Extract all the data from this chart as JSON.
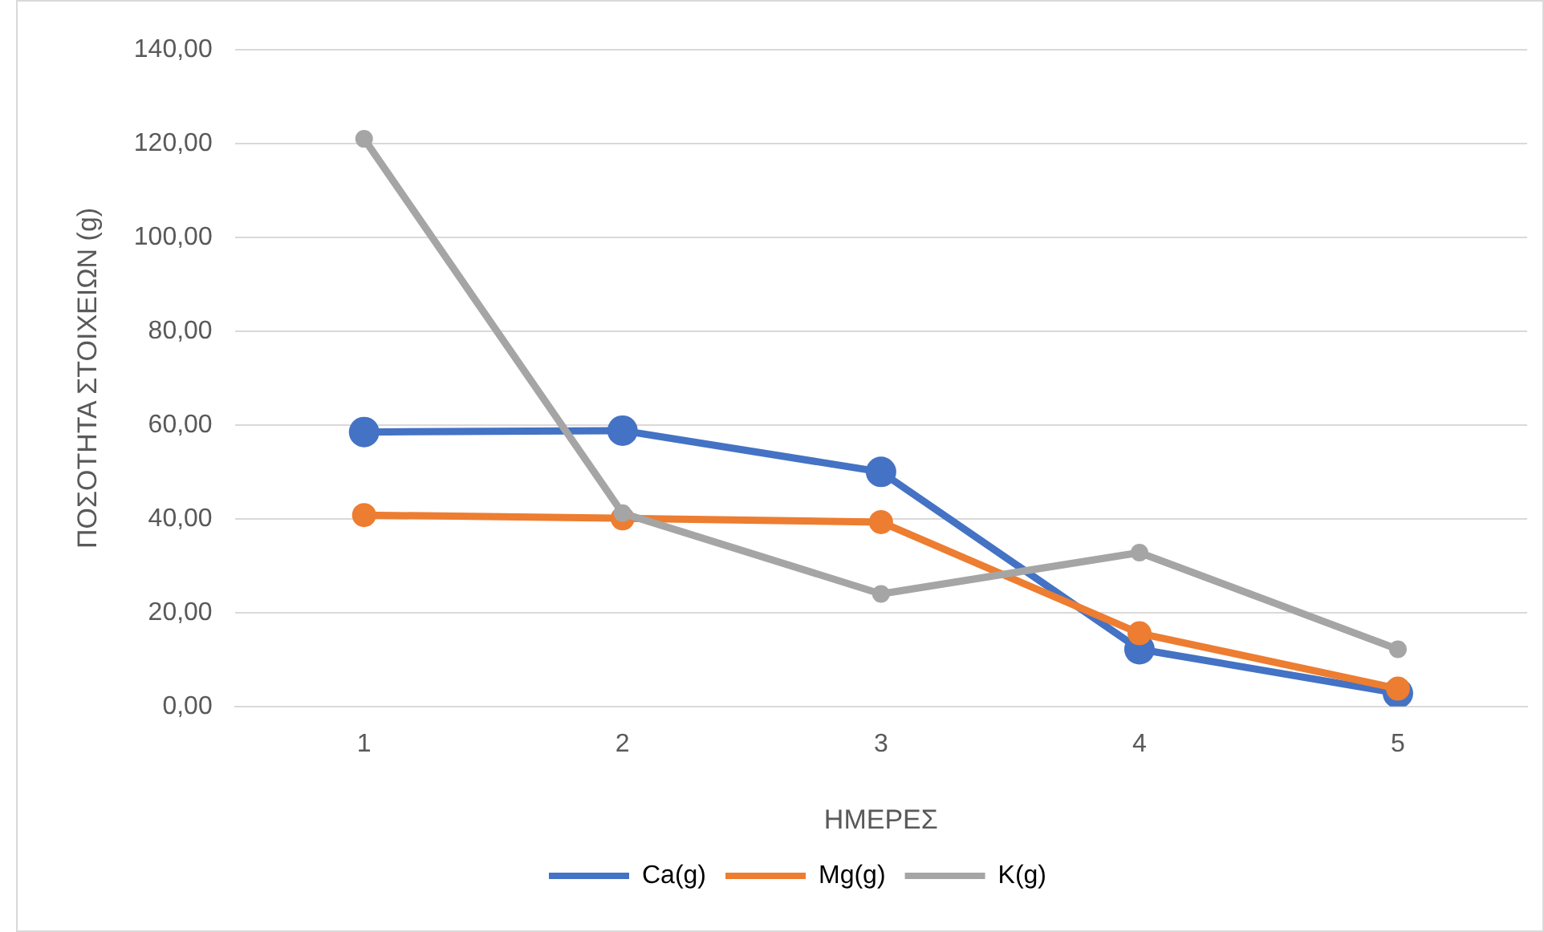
{
  "chart_data": {
    "type": "line",
    "xlabel": "ΗΜΕΡΕΣ",
    "ylabel": "ΠΟΣΟΤΗΤΑ ΣΤΟΙΧΕΙΩΝ (g)",
    "categories": [
      "1",
      "2",
      "3",
      "4",
      "5"
    ],
    "series": [
      {
        "name": "Ca(g)",
        "color": "#4472c4",
        "values": [
          58.5,
          58.8,
          50.0,
          12.2,
          2.8
        ]
      },
      {
        "name": "Mg(g)",
        "color": "#ed7d31",
        "values": [
          40.8,
          40.1,
          39.3,
          15.6,
          3.8
        ]
      },
      {
        "name": "K(g)",
        "color": "#a5a5a5",
        "values": [
          121.0,
          41.2,
          24.0,
          32.8,
          12.2
        ]
      }
    ],
    "ylim": [
      0,
      140
    ],
    "yticks": [
      {
        "value": 0,
        "label": "0,00"
      },
      {
        "value": 20,
        "label": "20,00"
      },
      {
        "value": 40,
        "label": "40,00"
      },
      {
        "value": 60,
        "label": "60,00"
      },
      {
        "value": 80,
        "label": "80,00"
      },
      {
        "value": 100,
        "label": "100,00"
      },
      {
        "value": 120,
        "label": "120,00"
      },
      {
        "value": 140,
        "label": "140,00"
      }
    ],
    "grid": "y",
    "legend": "bottom",
    "marker": "circle",
    "line_style": "solid"
  }
}
